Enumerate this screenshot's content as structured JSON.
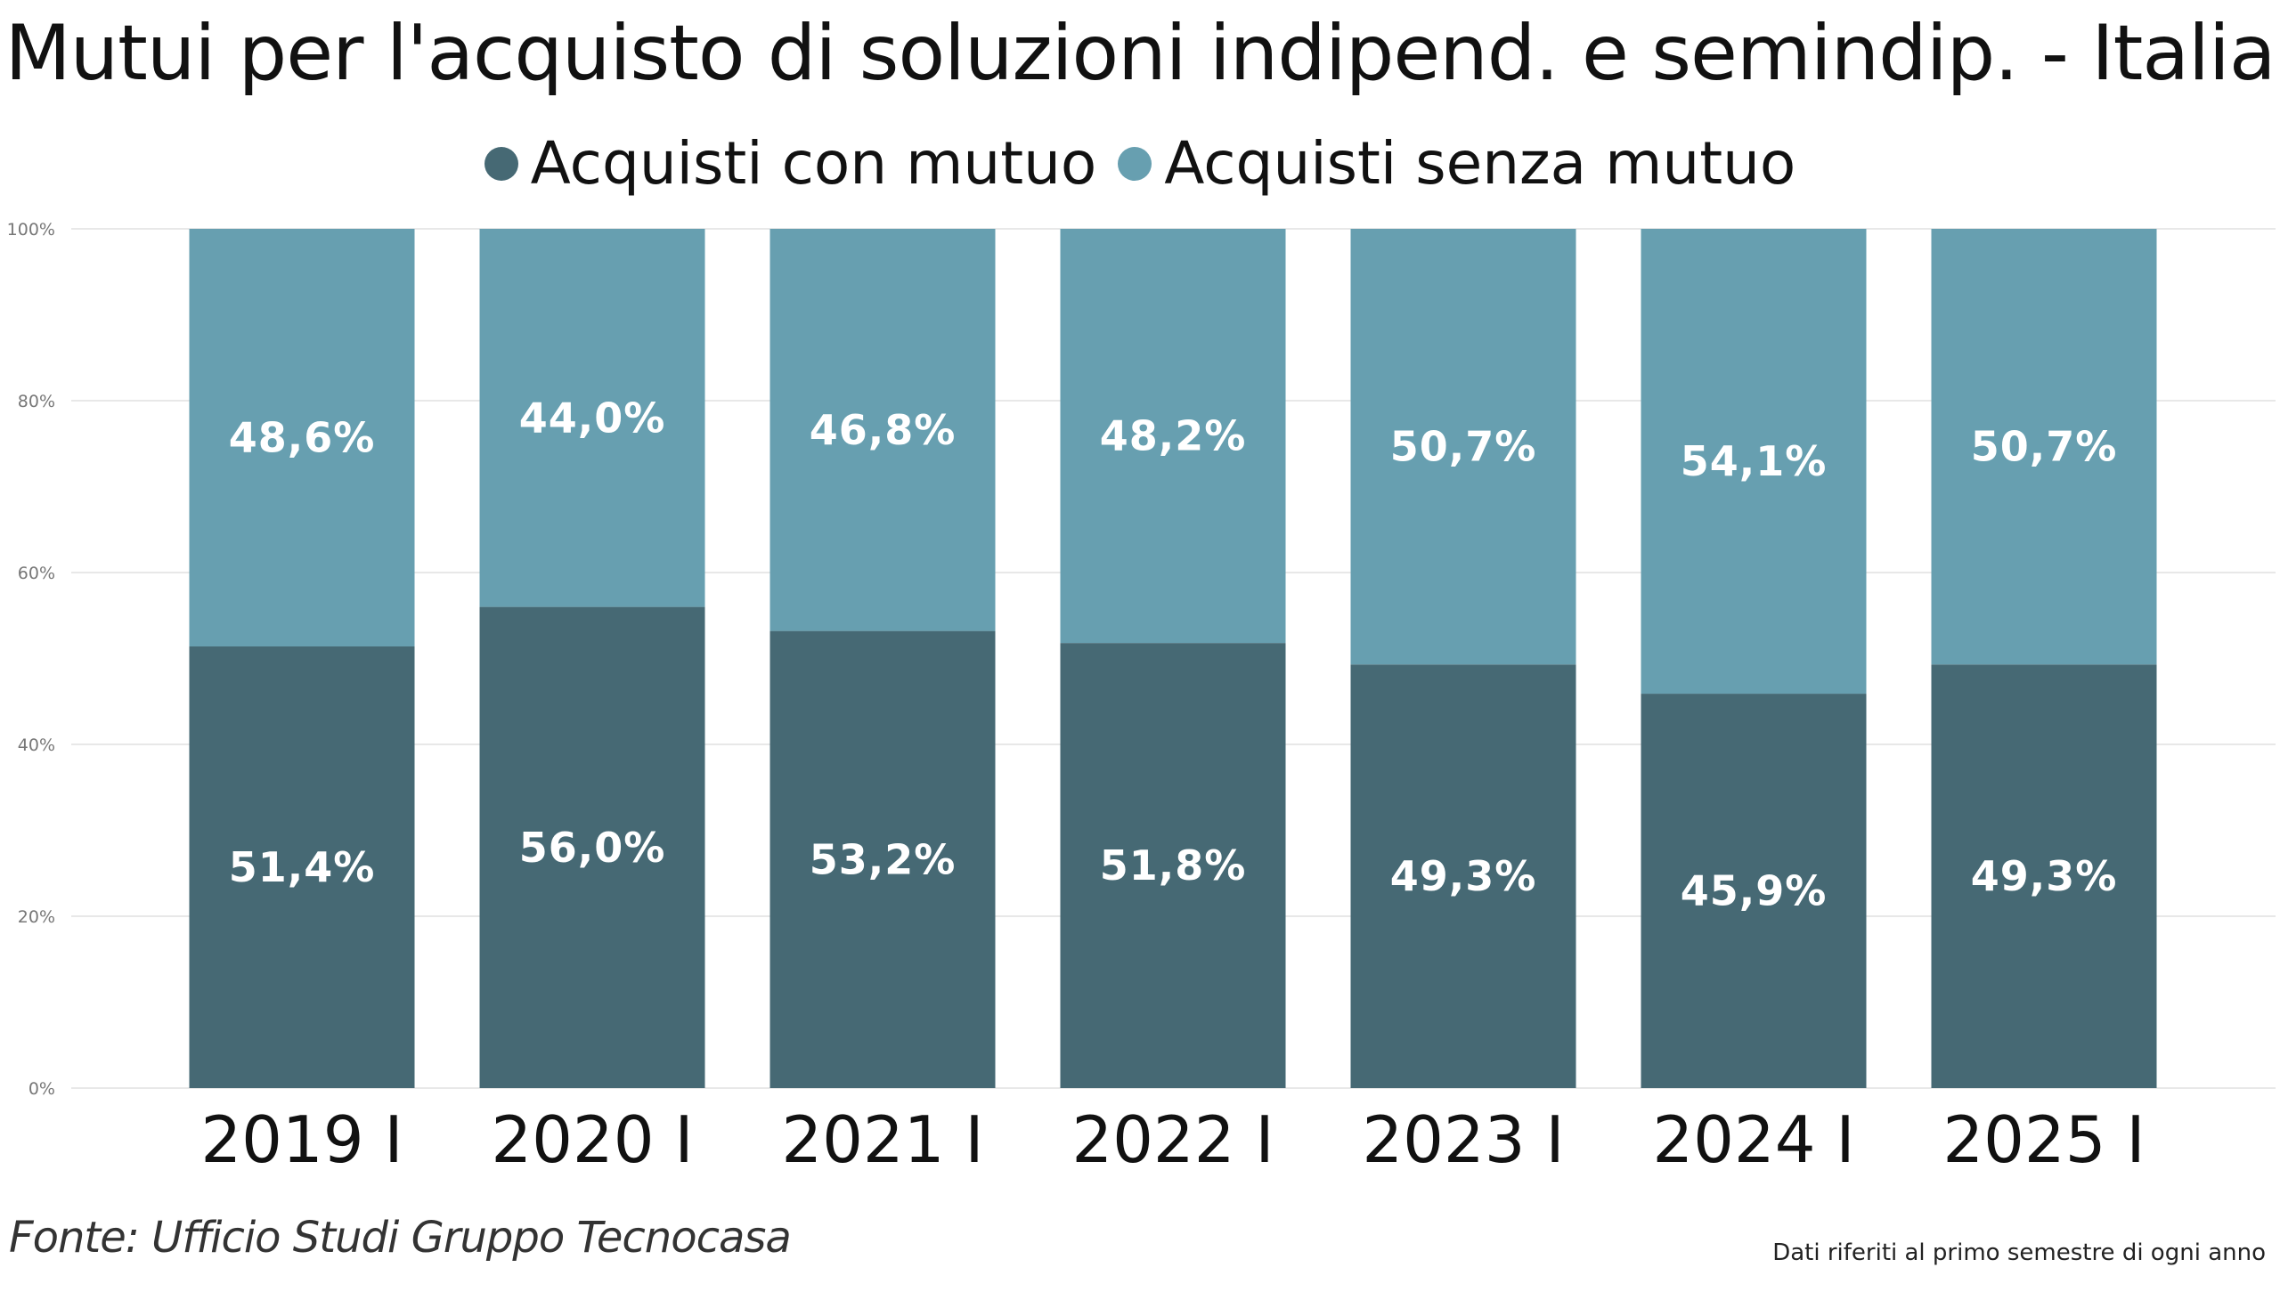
{
  "chart_data": {
    "type": "bar",
    "stacked": true,
    "title": "Mutui per l'acquisto di soluzioni indipend. e semindip. - Italia",
    "categories": [
      "2019 I",
      "2020 I",
      "2021 I",
      "2022 I",
      "2023 I",
      "2024 I",
      "2025 I"
    ],
    "series": [
      {
        "name": "Acquisti con mutuo",
        "color": "#466974",
        "values": [
          51.4,
          56.0,
          53.2,
          51.8,
          49.3,
          45.9,
          49.3
        ],
        "labels": [
          "51,4%",
          "56,0%",
          "53,2%",
          "51,8%",
          "49,3%",
          "45,9%",
          "49,3%"
        ]
      },
      {
        "name": "Acquisti senza mutuo",
        "color": "#679FB0",
        "values": [
          48.6,
          44.0,
          46.8,
          48.2,
          50.7,
          54.1,
          50.7
        ],
        "labels": [
          "48,6%",
          "44,0%",
          "46,8%",
          "48,2%",
          "50,7%",
          "54,1%",
          "50,7%"
        ]
      }
    ],
    "ylim": [
      0,
      100
    ],
    "yticks": [
      "0%",
      "20%",
      "40%",
      "60%",
      "80%",
      "100%"
    ],
    "grid": true,
    "legend": "top-center",
    "xlabel": "",
    "ylabel": ""
  },
  "footer": {
    "source": "Fonte: Ufficio Studi Gruppo Tecnocasa",
    "note": "Dati riferiti al primo semestre di ogni anno"
  }
}
